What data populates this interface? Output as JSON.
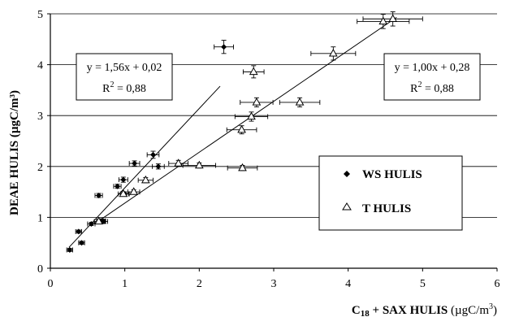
{
  "chart_data": {
    "type": "scatter",
    "xlim": [
      0,
      6
    ],
    "ylim": [
      0,
      5
    ],
    "x_ticks": [
      "0",
      "1",
      "2",
      "3",
      "4",
      "5",
      "6"
    ],
    "y_ticks": [
      "0",
      "1",
      "2",
      "3",
      "4",
      "5"
    ],
    "grid": "horizontal",
    "xlabel": {
      "base": "C",
      "sub": "18",
      "rest": " + SAX HULIS ",
      "unit": "(µgC/m",
      "unit_sup": "3",
      "unit_end": ")"
    },
    "ylabel": "DEAE HULIS  (µgC/m³)",
    "legend": {
      "placement": "center-right",
      "entries": [
        {
          "label": "WS HULIS",
          "marker": "diamond"
        },
        {
          "label": "T HULIS",
          "marker": "triangle"
        }
      ]
    },
    "series": [
      {
        "name": "WS HULIS",
        "marker": "diamond",
        "fit": {
          "slope": 1.56,
          "intercept": 0.02,
          "x_range": [
            0.25,
            2.28
          ],
          "equation": "y = 1,56x + 0,02",
          "r2_text": "R",
          "r2_sup": "2",
          "r2_value": " = 0,88"
        },
        "points": [
          {
            "x": 0.26,
            "y": 0.36,
            "xerr": 0.04,
            "yerr": 0.03
          },
          {
            "x": 0.38,
            "y": 0.72,
            "xerr": 0.04,
            "yerr": 0.03
          },
          {
            "x": 0.42,
            "y": 0.5,
            "xerr": 0.04,
            "yerr": 0.03
          },
          {
            "x": 0.55,
            "y": 0.87,
            "xerr": 0.05,
            "yerr": 0.03
          },
          {
            "x": 0.65,
            "y": 1.43,
            "xerr": 0.05,
            "yerr": 0.04
          },
          {
            "x": 0.68,
            "y": 0.93,
            "xerr": 0.06,
            "yerr": 0.04
          },
          {
            "x": 0.72,
            "y": 0.92,
            "xerr": 0.05,
            "yerr": 0.04
          },
          {
            "x": 0.9,
            "y": 1.61,
            "xerr": 0.05,
            "yerr": 0.04
          },
          {
            "x": 0.98,
            "y": 1.74,
            "xerr": 0.06,
            "yerr": 0.05
          },
          {
            "x": 1.0,
            "y": 1.46,
            "xerr": 0.06,
            "yerr": 0.04
          },
          {
            "x": 1.13,
            "y": 2.06,
            "xerr": 0.07,
            "yerr": 0.05
          },
          {
            "x": 1.45,
            "y": 2.0,
            "xerr": 0.08,
            "yerr": 0.05
          },
          {
            "x": 1.38,
            "y": 2.23,
            "xerr": 0.08,
            "yerr": 0.07
          },
          {
            "x": 2.33,
            "y": 4.35,
            "xerr": 0.13,
            "yerr": 0.13
          }
        ]
      },
      {
        "name": "T HULIS",
        "marker": "triangle",
        "fit": {
          "slope": 1.0,
          "intercept": 0.28,
          "x_range": [
            0.6,
            4.65
          ],
          "equation": "y = 1,00x + 0,28",
          "r2_text": "R",
          "r2_sup": "2",
          "r2_value": " = 0,88"
        },
        "points": [
          {
            "x": 0.65,
            "y": 0.92,
            "xerr": 0.06,
            "yerr": 0.04
          },
          {
            "x": 0.98,
            "y": 1.46,
            "xerr": 0.07,
            "yerr": 0.04
          },
          {
            "x": 1.12,
            "y": 1.5,
            "xerr": 0.08,
            "yerr": 0.04
          },
          {
            "x": 1.28,
            "y": 1.73,
            "xerr": 0.1,
            "yerr": 0.05
          },
          {
            "x": 1.72,
            "y": 2.06,
            "xerr": 0.13,
            "yerr": 0.06
          },
          {
            "x": 2.0,
            "y": 2.02,
            "xerr": 0.22,
            "yerr": 0.05
          },
          {
            "x": 2.58,
            "y": 1.97,
            "xerr": 0.2,
            "yerr": 0.05
          },
          {
            "x": 2.57,
            "y": 2.72,
            "xerr": 0.2,
            "yerr": 0.08
          },
          {
            "x": 2.7,
            "y": 2.98,
            "xerr": 0.22,
            "yerr": 0.09
          },
          {
            "x": 2.77,
            "y": 3.26,
            "xerr": 0.22,
            "yerr": 0.09
          },
          {
            "x": 2.73,
            "y": 3.86,
            "xerr": 0.14,
            "yerr": 0.12
          },
          {
            "x": 3.35,
            "y": 3.26,
            "xerr": 0.27,
            "yerr": 0.09
          },
          {
            "x": 3.8,
            "y": 4.22,
            "xerr": 0.3,
            "yerr": 0.13
          },
          {
            "x": 4.47,
            "y": 4.85,
            "xerr": 0.35,
            "yerr": 0.14
          },
          {
            "x": 4.6,
            "y": 4.9,
            "xerr": 0.4,
            "yerr": 0.14
          }
        ]
      }
    ]
  }
}
